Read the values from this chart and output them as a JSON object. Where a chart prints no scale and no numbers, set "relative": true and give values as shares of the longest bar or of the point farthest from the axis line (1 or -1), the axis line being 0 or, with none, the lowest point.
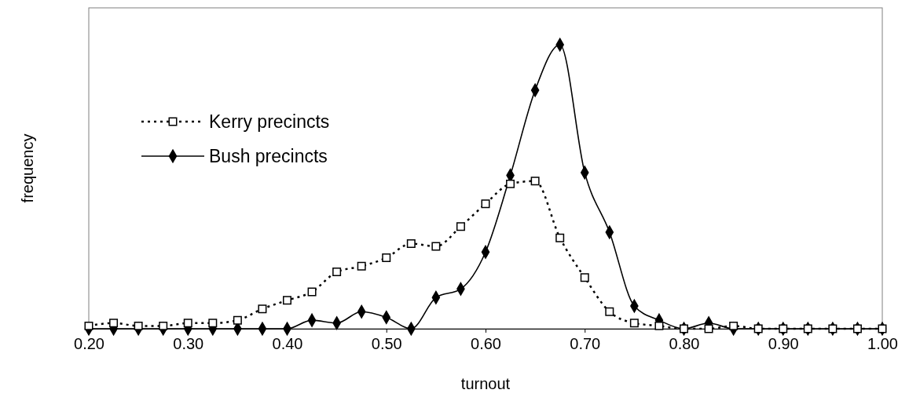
{
  "chart_data": {
    "type": "line",
    "xlabel": "turnout",
    "ylabel": "frequency",
    "relative": true,
    "x": [
      0.2,
      0.225,
      0.25,
      0.275,
      0.3,
      0.325,
      0.35,
      0.375,
      0.4,
      0.425,
      0.45,
      0.475,
      0.5,
      0.525,
      0.55,
      0.575,
      0.6,
      0.625,
      0.65,
      0.675,
      0.7,
      0.725,
      0.75,
      0.775,
      0.8,
      0.825,
      0.85,
      0.875,
      0.9,
      0.925,
      0.95,
      0.975,
      1.0
    ],
    "xlim": [
      0.2,
      1.0
    ],
    "xticks": [
      {
        "value": 0.2,
        "label": "0.20"
      },
      {
        "value": 0.3,
        "label": "0.30"
      },
      {
        "value": 0.4,
        "label": "0.40"
      },
      {
        "value": 0.5,
        "label": "0.50"
      },
      {
        "value": 0.6,
        "label": "0.60"
      },
      {
        "value": 0.7,
        "label": "0.70"
      },
      {
        "value": 0.8,
        "label": "0.80"
      },
      {
        "value": 0.9,
        "label": "0.90"
      },
      {
        "value": 1.0,
        "label": "1.00"
      }
    ],
    "series": [
      {
        "name": "Kerry precincts",
        "color": "#000000",
        "marker": "square",
        "line_style": "dotted",
        "values": [
          0.01,
          0.02,
          0.01,
          0.01,
          0.02,
          0.02,
          0.03,
          0.07,
          0.1,
          0.13,
          0.2,
          0.22,
          0.25,
          0.3,
          0.29,
          0.36,
          0.44,
          0.51,
          0.52,
          0.32,
          0.18,
          0.06,
          0.02,
          0.01,
          0,
          0,
          0.01,
          0,
          0,
          0,
          0,
          0,
          0
        ]
      },
      {
        "name": "Bush precincts",
        "color": "#000000",
        "marker": "diamond",
        "line_style": "solid",
        "values": [
          0,
          0,
          0,
          0,
          0,
          0,
          0,
          0,
          0,
          0.03,
          0.02,
          0.06,
          0.04,
          0,
          0.11,
          0.14,
          0.27,
          0.54,
          0.84,
          1,
          0.55,
          0.34,
          0.08,
          0.03,
          0,
          0.02,
          0,
          0,
          0,
          0,
          0,
          0,
          0
        ]
      }
    ],
    "grid": false,
    "legend": "top left"
  }
}
